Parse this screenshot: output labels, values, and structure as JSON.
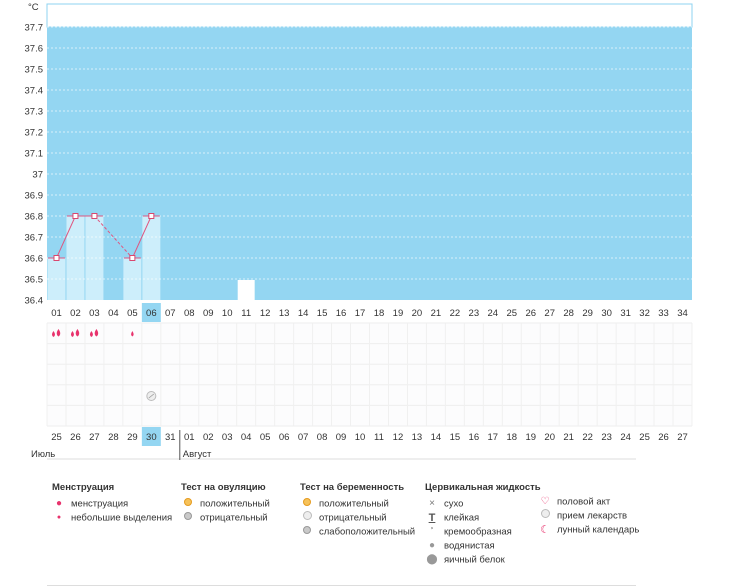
{
  "chart_data": {
    "type": "line",
    "unit": "°C",
    "ylim": [
      36.4,
      37.8
    ],
    "yticks": [
      "37.7",
      "37.6",
      "37.5",
      "37.4",
      "37.3",
      "37.2",
      "37.1",
      "37",
      "36.9",
      "36.8",
      "36.7",
      "36.6",
      "36.5",
      "36.4"
    ],
    "cycle_days": [
      "01",
      "02",
      "03",
      "04",
      "05",
      "06",
      "07",
      "08",
      "09",
      "10",
      "11",
      "12",
      "13",
      "14",
      "15",
      "16",
      "17",
      "18",
      "19",
      "20",
      "21",
      "22",
      "23",
      "24",
      "25",
      "26",
      "27",
      "28",
      "29",
      "30",
      "31",
      "32",
      "33",
      "34"
    ],
    "dates": [
      "25",
      "26",
      "27",
      "28",
      "29",
      "30",
      "31",
      "01",
      "02",
      "03",
      "04",
      "05",
      "06",
      "07",
      "08",
      "09",
      "10",
      "11",
      "12",
      "13",
      "14",
      "15",
      "16",
      "17",
      "18",
      "19",
      "20",
      "21",
      "22",
      "23",
      "24",
      "25",
      "26",
      "27"
    ],
    "red_dates": [
      2,
      3,
      9,
      10,
      16,
      17,
      23,
      24,
      30,
      31
    ],
    "current_index": 5,
    "months": [
      {
        "label": "Июль",
        "start_index": 0
      },
      {
        "label": "Август",
        "start_index": 7
      }
    ],
    "temperature": [
      {
        "day_index": 0,
        "value": 36.6
      },
      {
        "day_index": 1,
        "value": 36.8
      },
      {
        "day_index": 2,
        "value": 36.8
      },
      {
        "day_index": 4,
        "value": 36.6
      },
      {
        "day_index": 5,
        "value": 36.8
      }
    ],
    "menstruation": [
      {
        "day_index": 0,
        "kind": "menstruation"
      },
      {
        "day_index": 1,
        "kind": "menstruation"
      },
      {
        "day_index": 2,
        "kind": "menstruation"
      },
      {
        "day_index": 4,
        "kind": "spotting"
      }
    ],
    "medication": [
      {
        "day_index": 5
      }
    ],
    "lunar": [
      {
        "day_index": 10
      }
    ],
    "colors": {
      "plot_bg": "#94d6f2",
      "bar": "#cdeefb",
      "line": "#e05680",
      "marker": "#d9476f",
      "current": "#94d6f2",
      "red_date": "#d01c51"
    }
  },
  "legend": {
    "menstruation": {
      "title": "Менструация",
      "items": [
        "менструация",
        "небольшие выделения"
      ]
    },
    "ovulation": {
      "title": "Тест на овуляцию",
      "items": [
        "положительный",
        "отрицательный"
      ]
    },
    "pregnancy": {
      "title": "Тест на беременность",
      "items": [
        "положительный",
        "отрицательный",
        "слабоположительный"
      ]
    },
    "cervical": {
      "title": "Цервикальная жидкость",
      "items": [
        "сухо",
        "клейкая",
        "кремообразная",
        "водянистая",
        "яичный белок"
      ]
    },
    "other": {
      "items": [
        "половой акт",
        "прием лекарств",
        "лунный календарь"
      ]
    }
  }
}
